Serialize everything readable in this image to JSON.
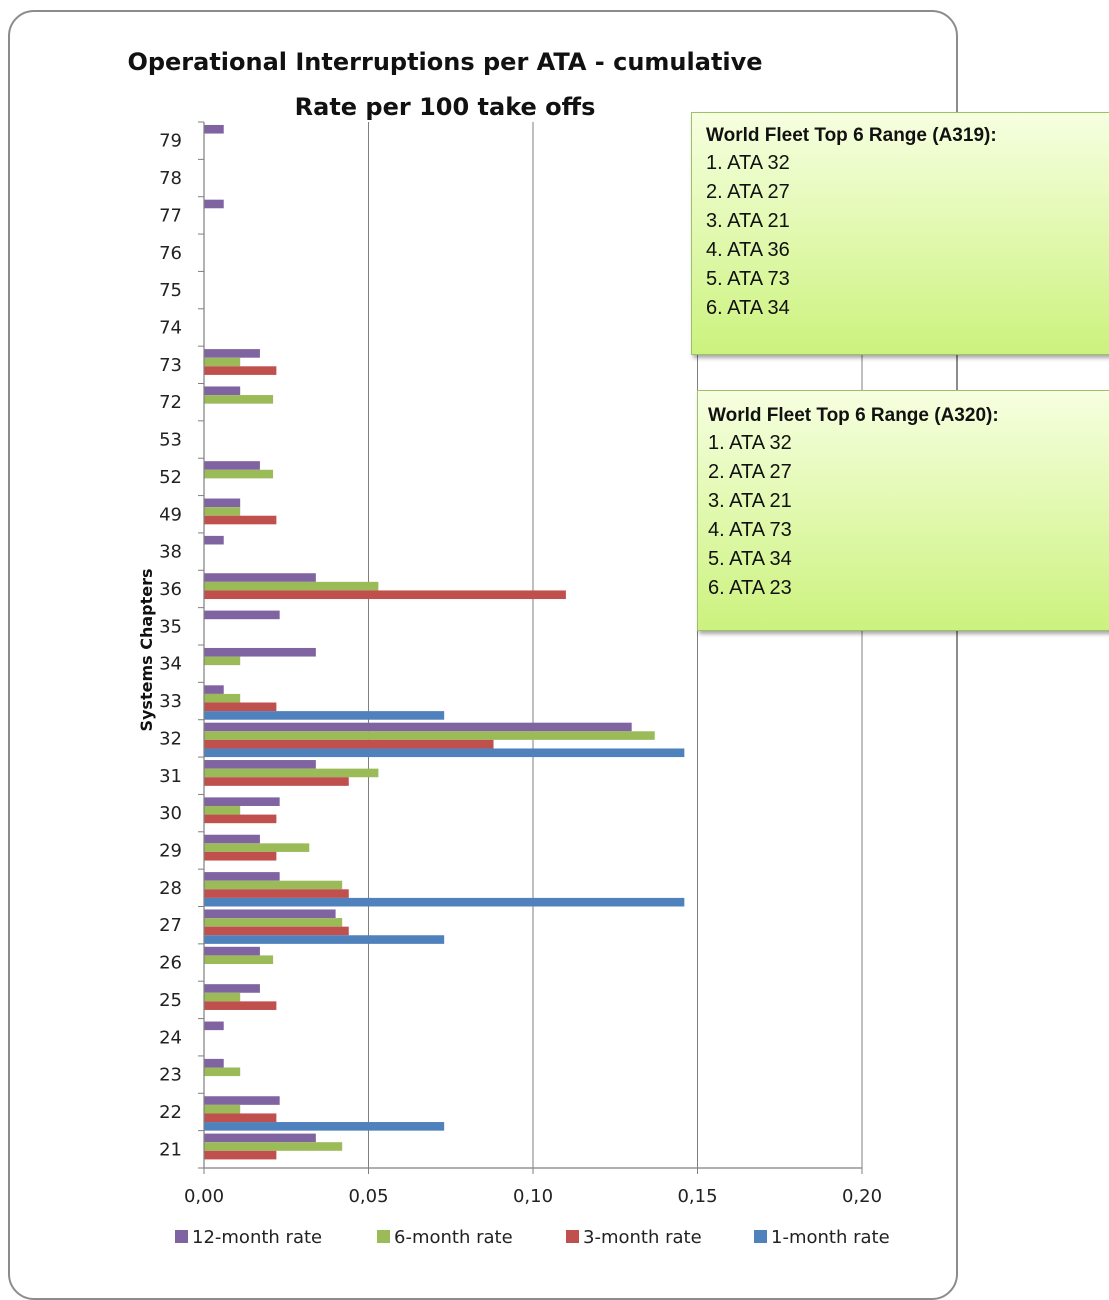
{
  "chart_data": {
    "type": "bar",
    "orientation": "horizontal",
    "title": [
      "Operational Interruptions per ATA - cumulative",
      "Rate per 100 take offs"
    ],
    "ylabel": "Systems Chapters",
    "xlabel": "",
    "xlim": [
      0,
      0.2
    ],
    "xticks": [
      "0,00",
      "0,05",
      "0,10",
      "0,15",
      "0,20"
    ],
    "xtick_values": [
      0,
      0.05,
      0.1,
      0.15,
      0.2
    ],
    "grid": "vertical",
    "legend_position": "bottom",
    "categories": [
      "21",
      "22",
      "23",
      "24",
      "25",
      "26",
      "27",
      "28",
      "29",
      "30",
      "31",
      "32",
      "33",
      "34",
      "35",
      "36",
      "38",
      "49",
      "52",
      "53",
      "72",
      "73",
      "74",
      "75",
      "76",
      "77",
      "78",
      "79"
    ],
    "series": [
      {
        "name": "12-month rate",
        "color": "#8064a2",
        "values": [
          0.034,
          0.023,
          0.006,
          0.006,
          0.017,
          0.017,
          0.04,
          0.023,
          0.017,
          0.023,
          0.034,
          0.13,
          0.006,
          0.034,
          0.023,
          0.034,
          0.006,
          0.011,
          0.017,
          0,
          0.011,
          0.017,
          0,
          0,
          0,
          0.006,
          0,
          0.006
        ]
      },
      {
        "name": "6-month rate",
        "color": "#9bbb59",
        "values": [
          0.042,
          0.011,
          0.011,
          0,
          0.011,
          0.021,
          0.042,
          0.042,
          0.032,
          0.011,
          0.053,
          0.137,
          0.011,
          0.011,
          0,
          0.053,
          0,
          0.011,
          0.021,
          0,
          0.021,
          0.011,
          0,
          0,
          0,
          0,
          0,
          0
        ]
      },
      {
        "name": "3-month rate",
        "color": "#c0504d",
        "values": [
          0.022,
          0.022,
          0,
          0,
          0.022,
          0,
          0.044,
          0.044,
          0.022,
          0.022,
          0.044,
          0.088,
          0.022,
          0,
          0,
          0.11,
          0,
          0.022,
          0,
          0,
          0,
          0.022,
          0,
          0,
          0,
          0,
          0,
          0
        ]
      },
      {
        "name": "1-month rate",
        "color": "#4f81bd",
        "values": [
          0,
          0.073,
          0,
          0,
          0,
          0,
          0.073,
          0.146,
          0,
          0,
          0,
          0.146,
          0.073,
          0,
          0,
          0,
          0,
          0,
          0,
          0,
          0,
          0,
          0,
          0,
          0,
          0,
          0,
          0
        ]
      }
    ]
  },
  "notes": {
    "a319": {
      "title": "World Fleet Top 6 Range (A319):",
      "items": [
        "1. ATA 32",
        "2. ATA 27",
        "3. ATA 21",
        "4. ATA 36",
        "5. ATA 73",
        "6. ATA 34"
      ]
    },
    "a320": {
      "title": "World Fleet Top 6 Range (A320):",
      "items": [
        "1. ATA 32",
        "2. ATA 27",
        "3. ATA 21",
        "4. ATA 73",
        "5. ATA 34",
        "6. ATA 23"
      ]
    }
  }
}
